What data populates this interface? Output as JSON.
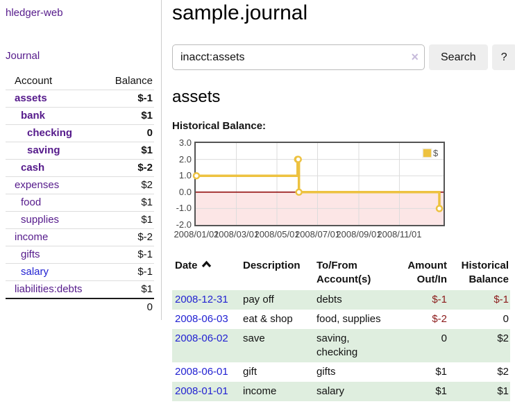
{
  "app": {
    "title": "hledger-web"
  },
  "sidebar": {
    "journal_link": "Journal",
    "table": {
      "headers": {
        "account": "Account",
        "balance": "Balance"
      },
      "rows": [
        {
          "account": "assets",
          "balance": "$-1",
          "indent": 1,
          "bold": true,
          "neg": "strong"
        },
        {
          "account": "bank",
          "balance": "$1",
          "indent": 2,
          "bold": true
        },
        {
          "account": "checking",
          "balance": "0",
          "indent": 3,
          "bold": true
        },
        {
          "account": "saving",
          "balance": "$1",
          "indent": 3,
          "bold": true
        },
        {
          "account": "cash",
          "balance": "$-2",
          "indent": 2,
          "bold": true,
          "neg": "strong"
        },
        {
          "account": "expenses",
          "balance": "$2",
          "indent": 1
        },
        {
          "account": "food",
          "balance": "$1",
          "indent": 2
        },
        {
          "account": "supplies",
          "balance": "$1",
          "indent": 2
        },
        {
          "account": "income",
          "balance": "$-2",
          "indent": 1,
          "neg": "weak"
        },
        {
          "account": "gifts",
          "balance": "$-1",
          "indent": 2,
          "neg": "weak"
        },
        {
          "account": "salary",
          "balance": "$-1",
          "indent": 2,
          "neg": "weak",
          "blue": true
        },
        {
          "account": "liabilities:debts",
          "balance": "$1",
          "indent": 1
        }
      ],
      "total": "0"
    }
  },
  "header": {
    "title": "sample.journal"
  },
  "search": {
    "value": "inacct:assets",
    "clear_icon": "×",
    "button": "Search",
    "help_button": "?",
    "sort_icon_name": "chevron-up-icon"
  },
  "account_page": {
    "heading": "assets",
    "chart_label": "Historical Balance:"
  },
  "chart_data": {
    "type": "line",
    "step": true,
    "title": "Historical Balance",
    "legend": {
      "label": "$",
      "position": "top-right"
    },
    "series": [
      {
        "name": "$",
        "color": "#edc240",
        "points": [
          [
            "2008-01-01",
            1
          ],
          [
            "2008-06-01",
            2
          ],
          [
            "2008-06-02",
            2
          ],
          [
            "2008-06-03",
            0
          ],
          [
            "2008-12-31",
            -1
          ]
        ]
      }
    ],
    "ylim": [
      -2.0,
      3.0
    ],
    "yticks": [
      "3.0",
      "2.0",
      "1.0",
      "0.0",
      "-1.0",
      "-2.0"
    ],
    "xticks": [
      "2008/01/01",
      "2008/03/01",
      "2008/05/01",
      "2008/07/01",
      "2008/09/01",
      "2008/11/01"
    ],
    "grid": true,
    "negative_region_color": "#fce6e6",
    "zero_line_color": "#8b0000",
    "border_color": "#545454",
    "gridline_color": "#dcdcdc"
  },
  "register": {
    "headers": [
      {
        "label": "Date",
        "sorted": "asc"
      },
      {
        "label": "Description"
      },
      {
        "label": "To/From Account(s)"
      },
      {
        "label": "Amount Out/In",
        "align": "right"
      },
      {
        "label": "Historical Balance",
        "align": "right"
      }
    ],
    "rows": [
      {
        "date": "2008-12-31",
        "description": "pay off",
        "accounts": "debts",
        "amount": "$-1",
        "balance": "$-1"
      },
      {
        "date": "2008-06-03",
        "description": "eat & shop",
        "accounts": "food, supplies",
        "amount": "$-2",
        "balance": "0"
      },
      {
        "date": "2008-06-02",
        "description": "save",
        "accounts": "saving, checking",
        "amount": "0",
        "balance": "$2"
      },
      {
        "date": "2008-06-01",
        "description": "gift",
        "accounts": "gifts",
        "amount": "$1",
        "balance": "$2"
      },
      {
        "date": "2008-01-01",
        "description": "income",
        "accounts": "salary",
        "amount": "$1",
        "balance": "$1"
      }
    ]
  }
}
